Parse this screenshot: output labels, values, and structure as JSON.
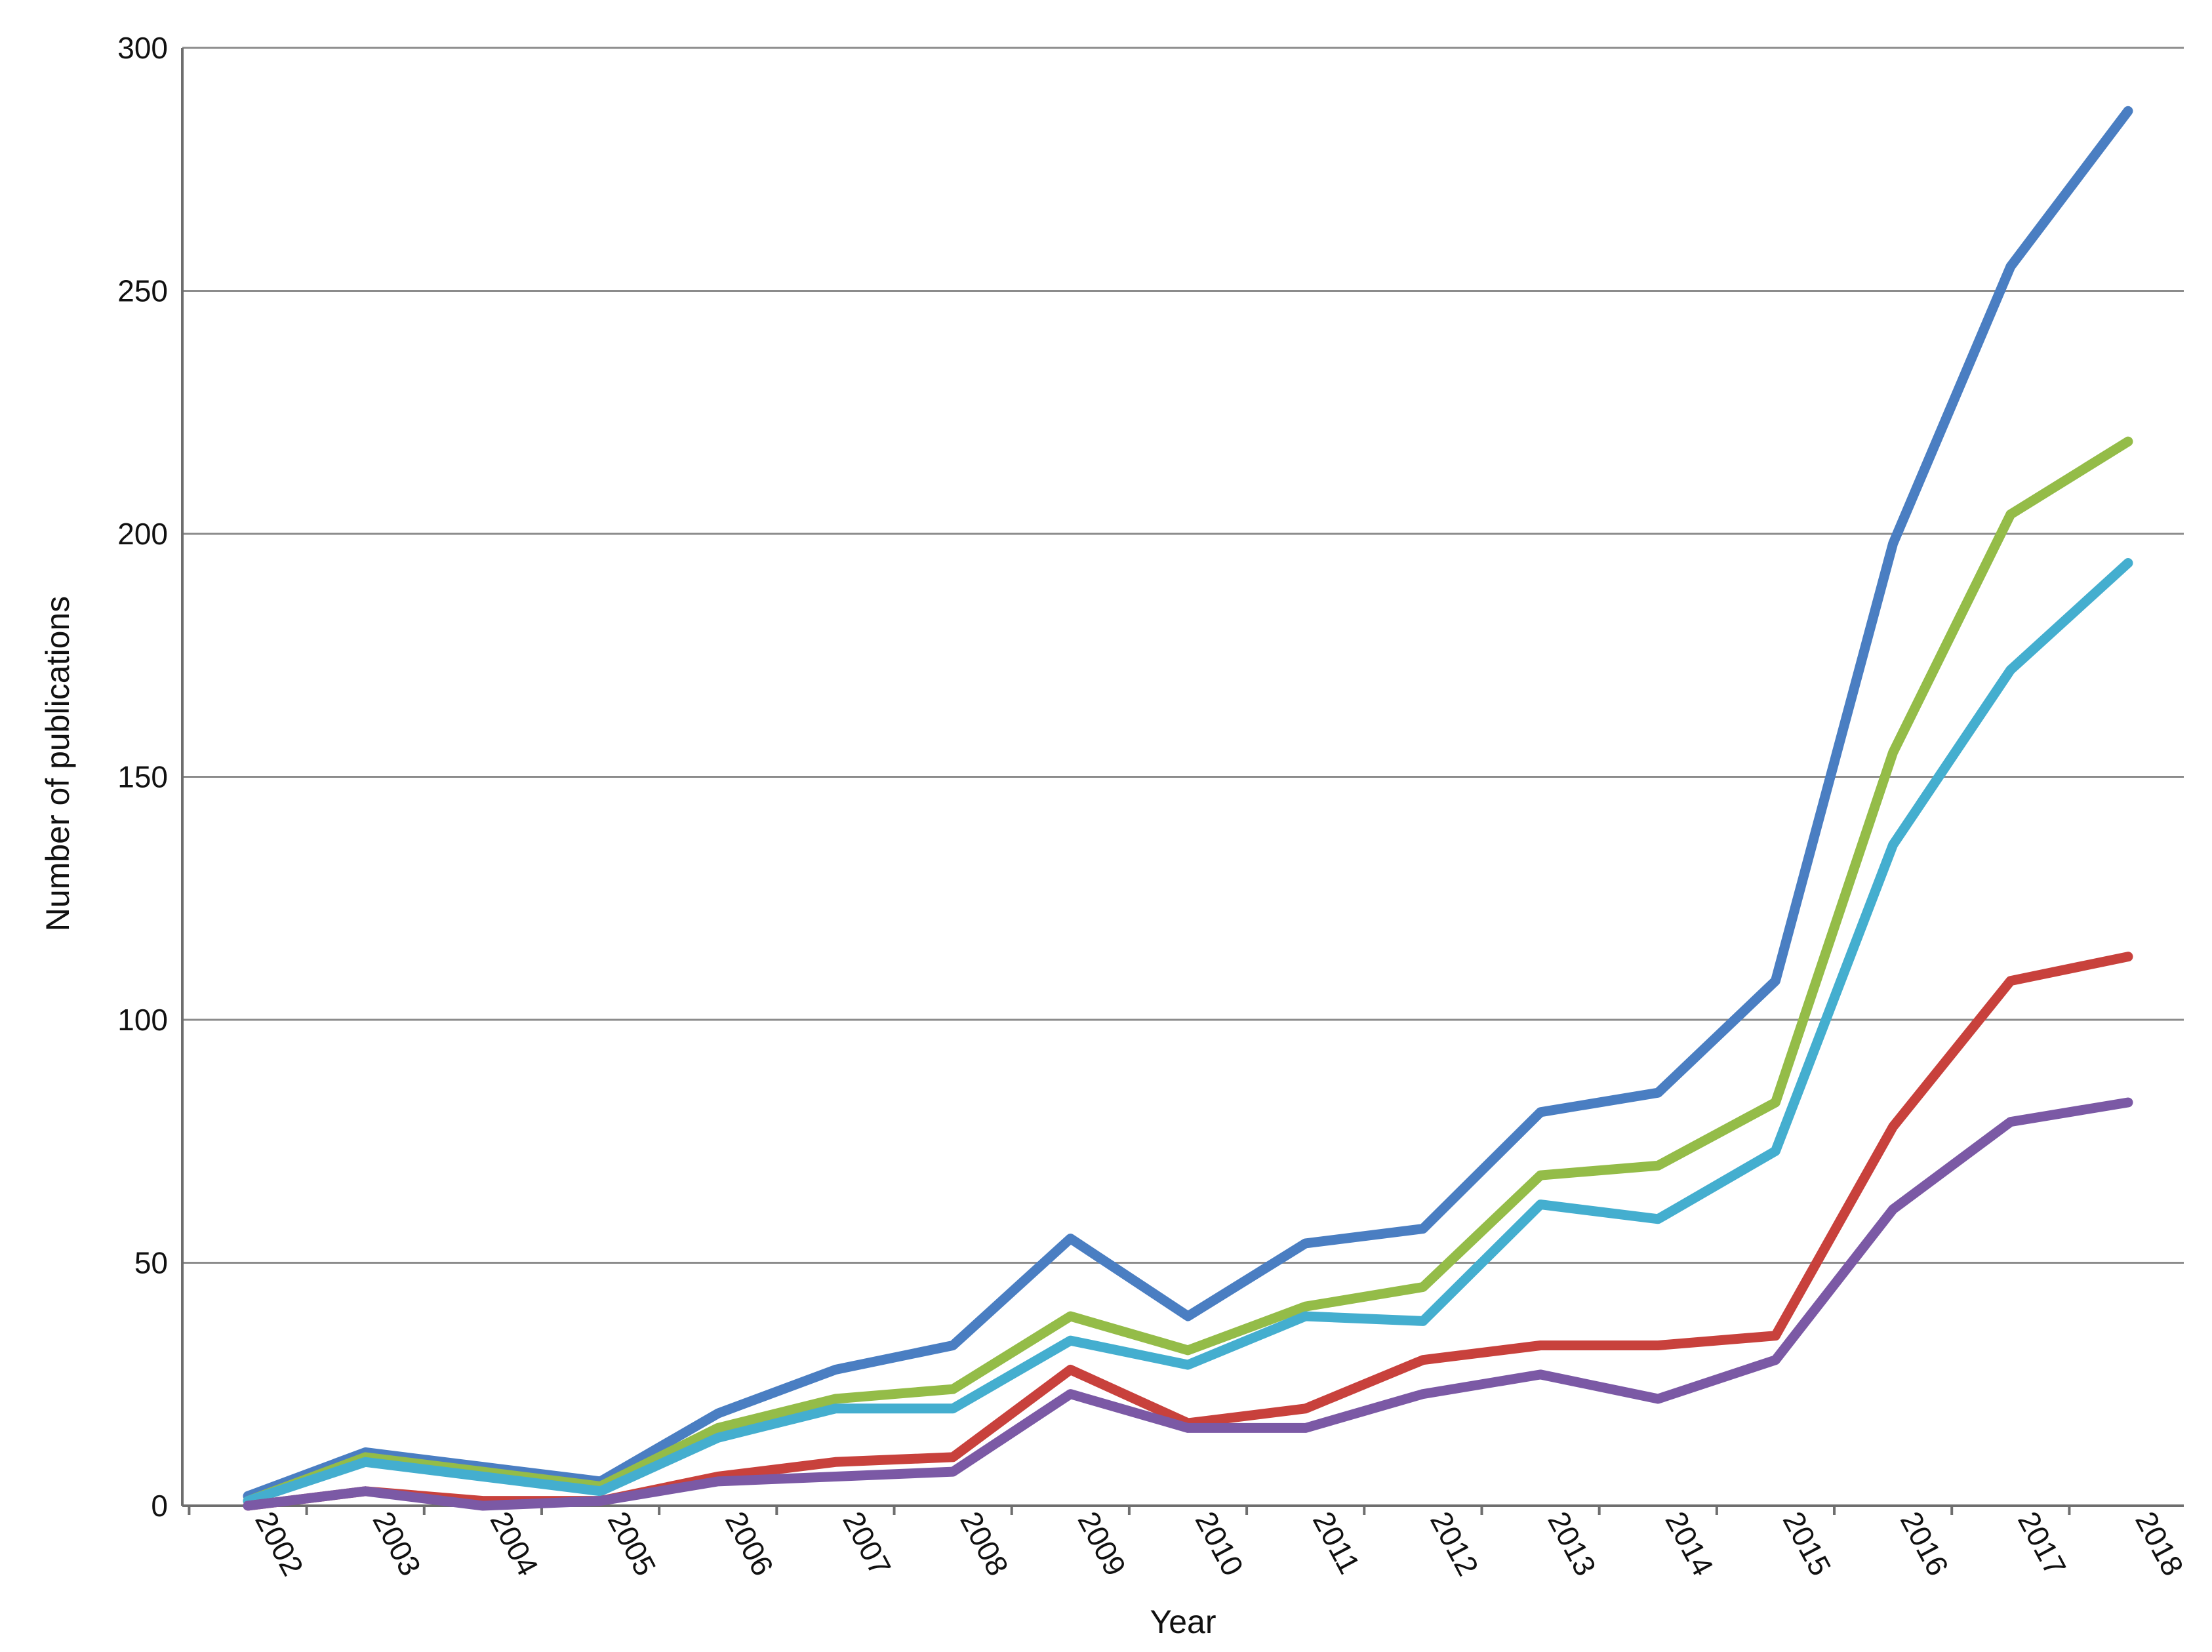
{
  "chart_data": {
    "type": "line",
    "title": "",
    "xlabel": "Year",
    "ylabel": "Number of publications",
    "ylim": [
      0,
      300
    ],
    "yticks": [
      0,
      50,
      100,
      150,
      200,
      250,
      300
    ],
    "grid": true,
    "legend": "none",
    "x": [
      "2002",
      "2003",
      "2004",
      "2005",
      "2006",
      "2007",
      "2008",
      "2009",
      "2010",
      "2011",
      "2012",
      "2013",
      "2014",
      "2015",
      "2016",
      "2017",
      "2018"
    ],
    "series": [
      {
        "color": "#4a7ec2",
        "values": [
          2,
          11,
          8,
          5,
          19,
          28,
          33,
          55,
          39,
          54,
          57,
          81,
          85,
          108,
          198,
          255,
          287
        ]
      },
      {
        "color": "#94bc48",
        "values": [
          1,
          10,
          7,
          4,
          16,
          22,
          24,
          39,
          32,
          41,
          45,
          68,
          70,
          83,
          155,
          204,
          219
        ]
      },
      {
        "color": "#44aecf",
        "values": [
          1,
          9,
          6,
          3,
          14,
          20,
          20,
          34,
          29,
          39,
          38,
          62,
          59,
          73,
          136,
          172,
          194
        ]
      },
      {
        "color": "#c8413c",
        "values": [
          0,
          3,
          1,
          1,
          6,
          9,
          10,
          28,
          17,
          20,
          30,
          33,
          33,
          35,
          78,
          108,
          113
        ]
      },
      {
        "color": "#7b59a5",
        "values": [
          0,
          3,
          0,
          1,
          5,
          6,
          7,
          23,
          16,
          16,
          23,
          27,
          22,
          30,
          61,
          79,
          83
        ]
      }
    ]
  }
}
